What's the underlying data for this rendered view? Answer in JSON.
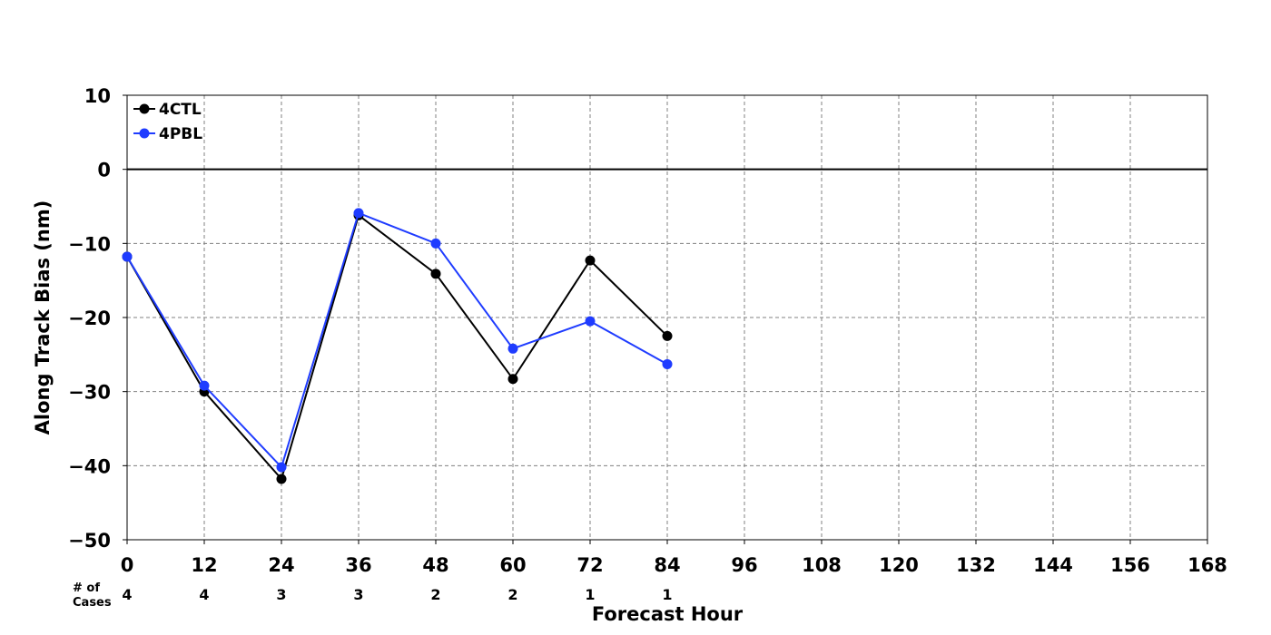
{
  "chart_data": {
    "type": "line",
    "title": "",
    "xlabel": "Forecast Hour",
    "ylabel": "Along Track Bias (nm)",
    "xlim": [
      0,
      168
    ],
    "ylim": [
      -50,
      10
    ],
    "x_ticks": [
      0,
      12,
      24,
      36,
      48,
      60,
      72,
      84,
      96,
      108,
      120,
      132,
      144,
      156,
      168
    ],
    "x_tick_labels": [
      "0",
      "12",
      "24",
      "36",
      "48",
      "60",
      "72",
      "84",
      "96",
      "108",
      "120",
      "132",
      "144",
      "156",
      "168"
    ],
    "y_ticks": [
      10,
      0,
      -10,
      -20,
      -30,
      -40,
      -50
    ],
    "y_tick_labels": [
      "10",
      "0",
      "−10",
      "−20",
      "−30",
      "−40",
      "−50"
    ],
    "grid": true,
    "zero_line": true,
    "legend_position": "top-left",
    "series": [
      {
        "name": "4CTL",
        "color": "#000000",
        "x": [
          0,
          12,
          24,
          36,
          48,
          60,
          72,
          84
        ],
        "values": [
          -11.8,
          -30.0,
          -41.8,
          -6.2,
          -14.1,
          -28.3,
          -12.3,
          -22.5
        ]
      },
      {
        "name": "4PBL",
        "color": "#1f3cff",
        "x": [
          0,
          12,
          24,
          36,
          48,
          60,
          72,
          84
        ],
        "values": [
          -11.8,
          -29.2,
          -40.2,
          -5.9,
          -10.0,
          -24.2,
          -20.5,
          -26.3
        ]
      }
    ],
    "cases": {
      "label_line1": "# of",
      "label_line2": "Cases",
      "x": [
        0,
        12,
        24,
        36,
        48,
        60,
        72,
        84
      ],
      "counts": [
        "4",
        "4",
        "3",
        "3",
        "2",
        "2",
        "1",
        "1"
      ]
    }
  }
}
